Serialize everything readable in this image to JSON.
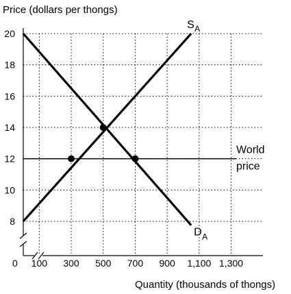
{
  "chart_data": {
    "type": "line",
    "title": "",
    "ylabel": "Price (dollars per thongs)",
    "xlabel": "Quantity (thousands of thongs)",
    "xlim": [
      0,
      1400
    ],
    "ylim": [
      7,
      21
    ],
    "y_axis_break": true,
    "x_axis_break": true,
    "origin_label": "0",
    "x_ticks": [
      100,
      300,
      500,
      700,
      900,
      1100,
      1300
    ],
    "x_tick_labels": [
      "100",
      "300",
      "500",
      "700",
      "900",
      "1,100",
      "1,300"
    ],
    "y_ticks": [
      8,
      10,
      12,
      14,
      16,
      18,
      20
    ],
    "y_tick_labels": [
      "8",
      "10",
      "12",
      "14",
      "16",
      "18",
      "20"
    ],
    "grid": "dotted",
    "series": [
      {
        "name": "S",
        "subscript": "A",
        "x": [
          0,
          1050
        ],
        "y": [
          8,
          20
        ]
      },
      {
        "name": "D",
        "subscript": "A",
        "x": [
          0,
          1050
        ],
        "y": [
          20,
          7.75
        ]
      },
      {
        "name": "World price",
        "x": [
          0,
          1330
        ],
        "y": [
          12,
          12
        ]
      }
    ],
    "world_price_label": [
      "World",
      "price"
    ],
    "points": [
      {
        "x": 300,
        "y": 12
      },
      {
        "x": 500,
        "y": 14
      },
      {
        "x": 700,
        "y": 12
      }
    ]
  }
}
